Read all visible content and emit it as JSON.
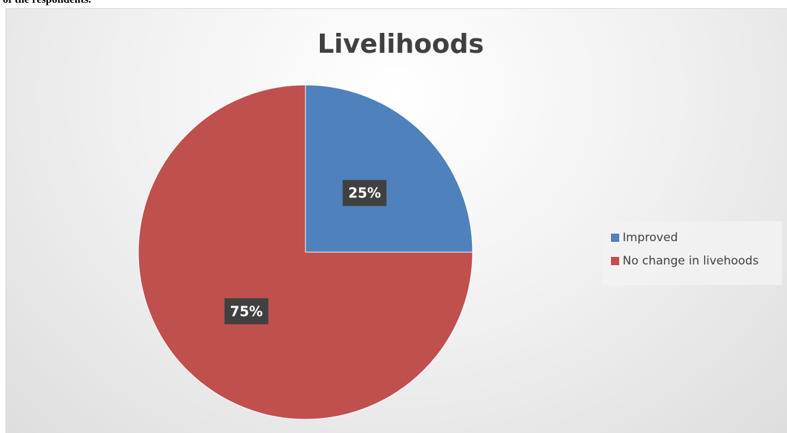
{
  "caption": "of the respondents.",
  "chart_data": {
    "type": "pie",
    "title": "Livelihoods",
    "slices": [
      {
        "label": "Improved",
        "value": 25,
        "data_label": "25%",
        "color": "#4f81bd"
      },
      {
        "label": "No change in livehoods",
        "value": 75,
        "data_label": "75%",
        "color": "#c0504d"
      }
    ],
    "legend_position": "right",
    "data_label_style": "dark box, white bold text"
  }
}
